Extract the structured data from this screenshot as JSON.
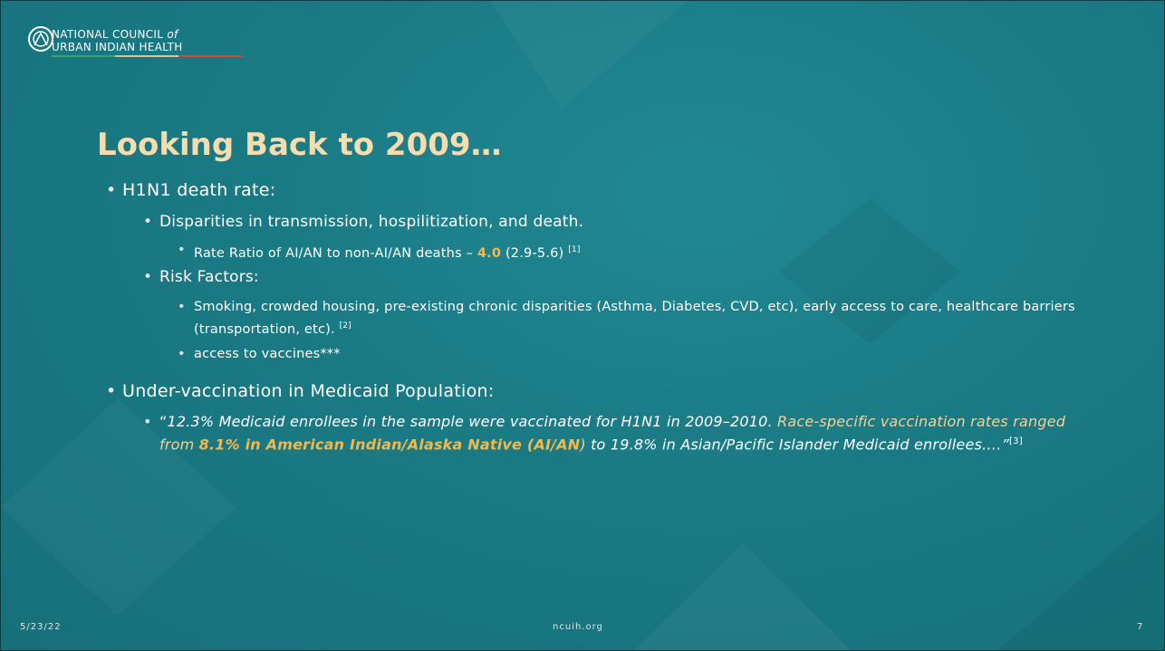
{
  "header": {
    "org_line1": "NATIONAL COUNCIL",
    "org_of": "of",
    "org_line2": "URBAN INDIAN HEALTH"
  },
  "title": "Looking Back to 2009…",
  "bullets": [
    {
      "text": "H1N1 death rate:",
      "children": [
        {
          "text": "Disparities in transmission, hospilitization, and death.",
          "children": [
            {
              "parts": [
                "Rate Ratio of AI/AN to non-AI/AN deaths – ",
                "4.0",
                " (2.9-5.6) ",
                "[1]"
              ]
            }
          ]
        },
        {
          "text": "Risk Factors:",
          "children": [
            {
              "parts": [
                "Smoking, crowded housing, pre-existing chronic disparities (Asthma, Diabetes, CVD, etc), early access to care, healthcare barriers (transportation, etc). ",
                "[2]"
              ]
            },
            {
              "text": "access to vaccines***"
            }
          ]
        }
      ]
    },
    {
      "text": "Under-vaccination in Medicaid Population:",
      "children": [
        {
          "parts": [
            "“",
            "12.3% Medicaid enrollees in the sample were vaccinated for H1N1 in 2009–2010. ",
            "Race-specific vaccination rates ranged from ",
            "8.1% in American Indian/Alaska Native (AI/AN",
            ")",
            " to 19.8% in Asian/Pacific Islander Medicaid enrollees….",
            "”",
            "[3]"
          ]
        }
      ]
    }
  ],
  "footer": {
    "date": "5/23/22",
    "site": "ncuih.org",
    "page": "7"
  }
}
